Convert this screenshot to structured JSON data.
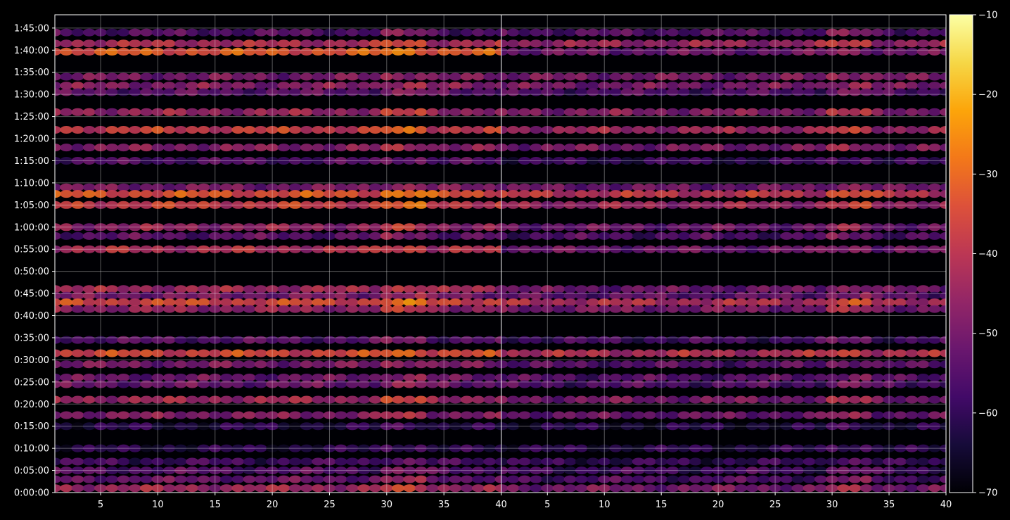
{
  "chart_data": {
    "type": "heatmap",
    "title": "",
    "xlabel": "",
    "ylabel": "",
    "colormap": "inferno",
    "background": "#000000",
    "grid": true,
    "panels": [
      {
        "name": "",
        "x_range": [
          1,
          40
        ],
        "x_ticks": [
          "5",
          "10",
          "15",
          "20",
          "25",
          "30",
          "35",
          "40"
        ]
      },
      {
        "name": "",
        "x_range": [
          1,
          40
        ],
        "x_ticks": [
          "5",
          "10",
          "15",
          "20",
          "25",
          "30",
          "35",
          "40"
        ]
      }
    ],
    "y_range_seconds": [
      0,
      6480
    ],
    "y_ticks": [
      "0:00:00",
      "0:05:00",
      "0:10:00",
      "0:15:00",
      "0:20:00",
      "0:25:00",
      "0:30:00",
      "0:35:00",
      "0:40:00",
      "0:45:00",
      "0:50:00",
      "0:55:00",
      "1:00:00",
      "1:05:00",
      "1:10:00",
      "1:15:00",
      "1:20:00",
      "1:25:00",
      "1:30:00",
      "1:35:00",
      "1:40:00",
      "1:45:00"
    ],
    "colorbar": {
      "range": [
        -70,
        -10
      ],
      "ticks": [
        "−10",
        "−20",
        "−30",
        "−40",
        "−50",
        "−60",
        "−70"
      ]
    },
    "bands": [
      {
        "t": "1:44:00",
        "left": -55,
        "right": -55
      },
      {
        "t": "1:41:30",
        "left": -42,
        "right": -45
      },
      {
        "t": "1:39:40",
        "left": -33,
        "right": -52
      },
      {
        "t": "1:34:00",
        "left": -50,
        "right": -50
      },
      {
        "t": "1:32:00",
        "left": -48,
        "right": -50
      },
      {
        "t": "1:30:30",
        "left": -54,
        "right": -56
      },
      {
        "t": "1:26:00",
        "left": -45,
        "right": -48
      },
      {
        "t": "1:22:00",
        "left": -38,
        "right": -45
      },
      {
        "t": "1:18:00",
        "left": -48,
        "right": -50
      },
      {
        "t": "1:15:00",
        "left": -56,
        "right": -60
      },
      {
        "t": "1:09:00",
        "left": -50,
        "right": -52
      },
      {
        "t": "1:07:30",
        "left": -34,
        "right": -40
      },
      {
        "t": "1:05:00",
        "left": -38,
        "right": -45
      },
      {
        "t": "1:00:00",
        "left": -46,
        "right": -52
      },
      {
        "t": "0:58:00",
        "left": -54,
        "right": -56
      },
      {
        "t": "0:55:00",
        "left": -42,
        "right": -52
      },
      {
        "t": "0:46:00",
        "left": -44,
        "right": -52
      },
      {
        "t": "0:44:30",
        "left": -50,
        "right": -54
      },
      {
        "t": "0:43:00",
        "left": -36,
        "right": -42
      },
      {
        "t": "0:41:30",
        "left": -46,
        "right": -50
      },
      {
        "t": "0:34:30",
        "left": -55,
        "right": -58
      },
      {
        "t": "0:31:30",
        "left": -36,
        "right": -42
      },
      {
        "t": "0:29:00",
        "left": -50,
        "right": -55
      },
      {
        "t": "0:26:00",
        "left": -52,
        "right": -55
      },
      {
        "t": "0:24:30",
        "left": -52,
        "right": -56
      },
      {
        "t": "0:21:00",
        "left": -44,
        "right": -50
      },
      {
        "t": "0:17:30",
        "left": -48,
        "right": -52
      },
      {
        "t": "0:15:00",
        "left": -62,
        "right": -63
      },
      {
        "t": "0:10:00",
        "left": -62,
        "right": -62
      },
      {
        "t": "0:07:00",
        "left": -58,
        "right": -60
      },
      {
        "t": "0:05:00",
        "left": -55,
        "right": -58
      },
      {
        "t": "0:03:00",
        "left": -52,
        "right": -56
      },
      {
        "t": "0:01:00",
        "left": -44,
        "right": -50
      }
    ]
  }
}
